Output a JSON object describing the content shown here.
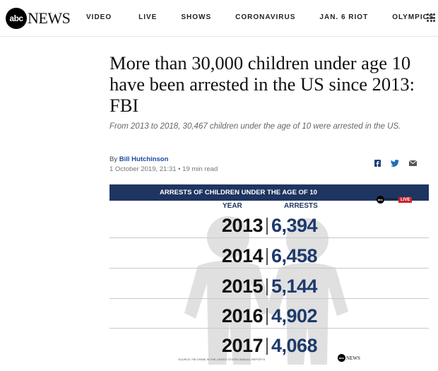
{
  "header": {
    "logo_mark": "abc",
    "logo_word": "NEWS",
    "nav": [
      "VIDEO",
      "LIVE",
      "SHOWS",
      "CORONAVIRUS",
      "JAN. 6 RIOT",
      "OLYMPICS"
    ]
  },
  "article": {
    "headline": "More than 30,000 children under age 10 have been arrested in the US since 2013: FBI",
    "subhead": "From 2013 to 2018, 30,467 children under the age of 10 were arrested in the US.",
    "by_prefix": "By ",
    "author": "Bill Hutchinson",
    "date": "1 October 2019, 21:31",
    "read_time": " • 19 min read"
  },
  "share": {
    "icons": [
      "facebook-icon",
      "twitter-icon",
      "email-icon"
    ]
  },
  "infographic": {
    "title": "ARRESTS OF CHILDREN UNDER THE AGE OF 10",
    "logo_mark": "abc",
    "logo_word": "NEWS",
    "live_label": "LIVE",
    "col_year": "YEAR",
    "col_arrests": "ARRESTS",
    "rows": [
      {
        "year": "2013",
        "arrests": "6,394"
      },
      {
        "year": "2014",
        "arrests": "6,458"
      },
      {
        "year": "2015",
        "arrests": "5,144"
      },
      {
        "year": "2016",
        "arrests": "4,902"
      },
      {
        "year": "2017",
        "arrests": "4,068"
      }
    ],
    "source": "SOURCE: FBI CRIME IN THE UNITED STATES ANNUAL REPORTS",
    "footer_logo_mark": "abc",
    "footer_logo_word": "NEWS"
  },
  "colors": {
    "navy": "#1f3561",
    "link": "#1a4a9c",
    "live_red": "#d0202a"
  }
}
